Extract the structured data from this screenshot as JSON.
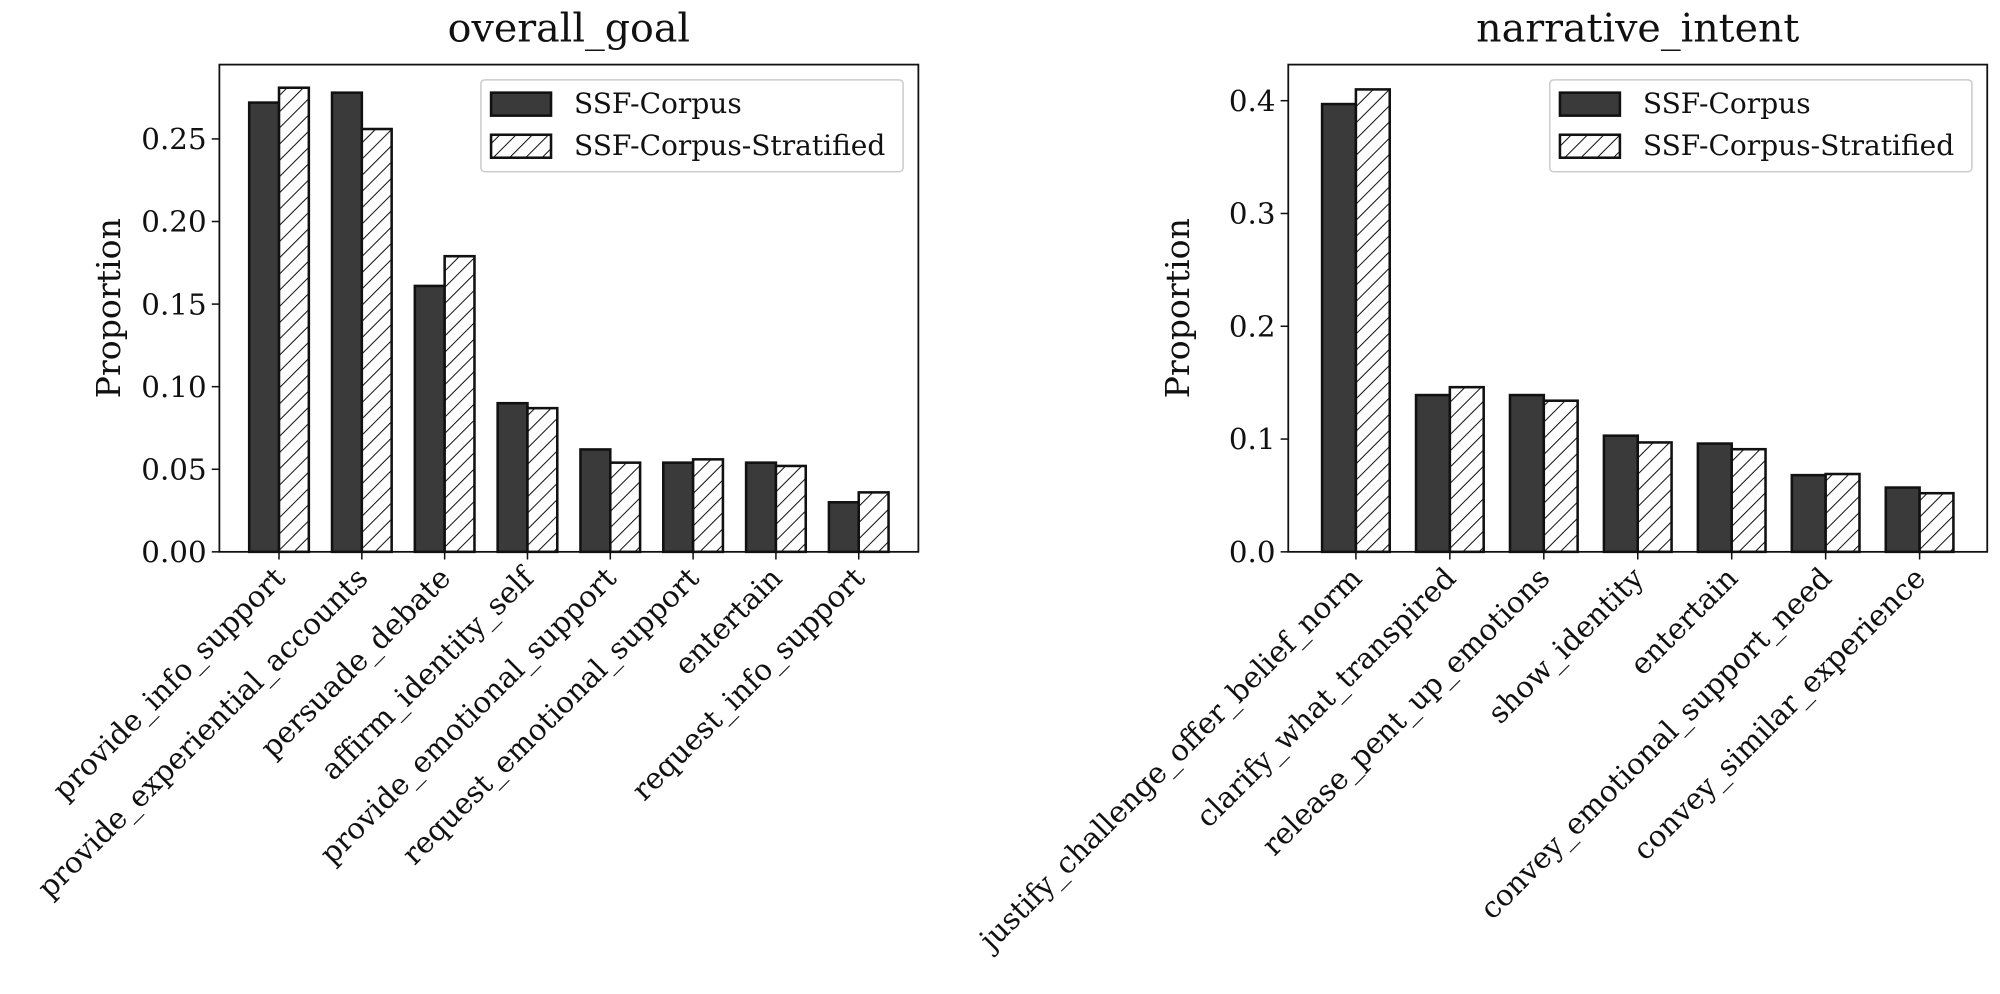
{
  "chart_data": [
    {
      "type": "bar",
      "title": "overall_goal",
      "y_label": "Proportion",
      "categories": [
        "provide_info_support",
        "provide_experiential_accounts",
        "persuade_debate",
        "affirm_identity_self",
        "provide_emotional_support",
        "request_emotional_support",
        "entertain",
        "request_info_support"
      ],
      "series": [
        {
          "name": "SSF-Corpus",
          "color": "#3a3a3a",
          "values": [
            0.272,
            0.278,
            0.161,
            0.09,
            0.062,
            0.054,
            0.054,
            0.03
          ]
        },
        {
          "name": "SSF-Corpus-Stratified",
          "color": "#ffffff",
          "hatch": "///",
          "values": [
            0.281,
            0.256,
            0.179,
            0.087,
            0.054,
            0.056,
            0.052,
            0.036
          ]
        }
      ],
      "ylim": [
        0,
        0.295
      ],
      "yticks": [
        {
          "value": 0,
          "label": "0.00"
        },
        0.05,
        {
          "value": 0.1,
          "label": "0.10"
        },
        0.15,
        {
          "value": 0.2,
          "label": "0.20"
        },
        0.25
      ],
      "legend": "upper right"
    },
    {
      "type": "bar",
      "title": "narrative_intent",
      "y_label": "Proportion",
      "categories": [
        "justify_challenge_offer_belief_norm",
        "clarify_what_transpired",
        "release_pent_up_emotions",
        "show_identity",
        "entertain",
        "convey_emotional_support_need",
        "convey_similar_experience"
      ],
      "series": [
        {
          "name": "SSF-Corpus",
          "color": "#3a3a3a",
          "values": [
            0.397,
            0.139,
            0.139,
            0.103,
            0.096,
            0.068,
            0.057
          ]
        },
        {
          "name": "SSF-Corpus-Stratified",
          "color": "#ffffff",
          "hatch": "///",
          "values": [
            0.41,
            0.146,
            0.134,
            0.097,
            0.091,
            0.069,
            0.052
          ]
        }
      ],
      "ylim": [
        0,
        0.432
      ],
      "yticks": [
        {
          "value": 0,
          "label": "0.0"
        },
        0.1,
        0.2,
        0.3,
        0.4
      ],
      "legend": "upper right"
    }
  ]
}
